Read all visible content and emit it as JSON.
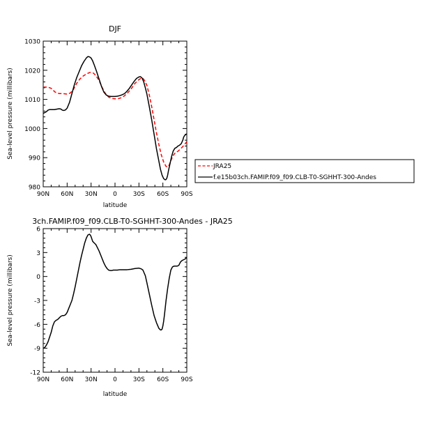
{
  "chart_data": [
    {
      "type": "line",
      "title": "DJF",
      "xlabel": "latitude",
      "ylabel": "Sea-level pressure (millibars)",
      "xlim": [
        -90,
        90
      ],
      "ylim": [
        980,
        1030
      ],
      "xticks": [
        -90,
        -60,
        -30,
        0,
        30,
        60,
        90
      ],
      "xticklabels": [
        "90N",
        "60N",
        "30N",
        "0",
        "30S",
        "60S",
        "90S"
      ],
      "yticks": [
        980,
        990,
        1000,
        1010,
        1020,
        1030
      ],
      "yticklabels": [
        "980",
        "990",
        "1000",
        "1010",
        "1020",
        "1030"
      ],
      "legend_position": "right",
      "series": [
        {
          "name": "JRA25",
          "color": "#ff0000",
          "style": "dashed",
          "x": [
            -90,
            -84,
            -80,
            -75,
            -70,
            -65,
            -60,
            -56,
            -52,
            -48,
            -44,
            -40,
            -36,
            -32,
            -30,
            -27,
            -24,
            -20,
            -16,
            -12,
            -8,
            -4,
            0,
            5,
            10,
            15,
            20,
            25,
            30,
            33,
            35,
            37,
            40,
            43,
            46,
            49,
            52,
            55,
            58,
            61,
            64,
            66,
            68,
            70,
            73,
            76,
            79,
            82,
            85,
            88,
            90
          ],
          "y": [
            1014.2,
            1014.2,
            1013.8,
            1012.5,
            1012,
            1012,
            1011.8,
            1012.2,
            1013.5,
            1015.5,
            1017,
            1018,
            1018.7,
            1019.2,
            1019.3,
            1019,
            1018.2,
            1016.5,
            1014,
            1012,
            1010.8,
            1010.3,
            1010.2,
            1010.3,
            1010.8,
            1012,
            1013.5,
            1015.5,
            1016.8,
            1017.3,
            1017.2,
            1016.5,
            1014.8,
            1011.5,
            1007.5,
            1003,
            998.5,
            994.5,
            991,
            988.5,
            987,
            986.8,
            987.5,
            989,
            990.8,
            991.8,
            992.2,
            993,
            993.8,
            994.8,
            995.5
          ]
        },
        {
          "name": "f.e15b03ch.FAMIP.f09_f09.CLB-T0-SGHHT-300-Andes",
          "color": "#000000",
          "style": "solid",
          "x": [
            -90,
            -88,
            -86,
            -84,
            -82,
            -80,
            -76,
            -72,
            -70,
            -68,
            -66,
            -64,
            -62,
            -60,
            -57,
            -54,
            -51,
            -48,
            -45,
            -42,
            -39,
            -36,
            -34,
            -32,
            -30,
            -28,
            -26,
            -23,
            -20,
            -17,
            -14,
            -11,
            -8,
            -5,
            -2,
            0,
            3,
            6,
            9,
            12,
            15,
            18,
            21,
            24,
            27,
            30,
            32,
            34,
            36,
            38,
            40,
            43,
            46,
            49,
            52,
            55,
            57,
            59,
            61,
            63,
            64,
            65,
            66,
            67,
            69,
            71,
            73,
            75,
            77,
            79,
            81,
            83,
            85,
            86,
            87,
            88,
            89,
            90
          ],
          "y": [
            1005.2,
            1005.5,
            1005.8,
            1006.3,
            1006.5,
            1006.5,
            1006.5,
            1006.7,
            1006.8,
            1006.7,
            1006.3,
            1006.2,
            1006.4,
            1007,
            1009,
            1012,
            1015,
            1017.5,
            1019.5,
            1021.5,
            1023,
            1024.2,
            1024.7,
            1024.6,
            1024.2,
            1023.2,
            1021.8,
            1019.5,
            1017,
            1014.5,
            1012.5,
            1011.5,
            1011.1,
            1011,
            1011,
            1011,
            1011.1,
            1011.3,
            1011.6,
            1012,
            1012.8,
            1013.8,
            1015,
            1016.2,
            1017.2,
            1017.7,
            1017.8,
            1017.3,
            1016,
            1014,
            1011.8,
            1007.5,
            1003,
            998,
            993,
            988.8,
            986,
            984,
            982.8,
            982.4,
            982.5,
            983,
            984,
            985.5,
            988,
            990.5,
            992.3,
            993.2,
            993.5,
            994,
            994.3,
            994.8,
            996,
            997,
            997.5,
            997.8,
            998,
            998.2
          ]
        }
      ]
    },
    {
      "type": "line",
      "title": "3ch.FAMIP.f09_f09.CLB-T0-SGHHT-300-Andes - JRA25",
      "xlabel": "latitude",
      "ylabel": "Sea-level pressure (millibars)",
      "xlim": [
        -90,
        90
      ],
      "ylim": [
        -12,
        6
      ],
      "xticks": [
        -90,
        -60,
        -30,
        0,
        30,
        60,
        90
      ],
      "xticklabels": [
        "90N",
        "60N",
        "30N",
        "0",
        "30S",
        "60S",
        "90S"
      ],
      "yticks": [
        -12,
        -9,
        -6,
        -3,
        0,
        3,
        6
      ],
      "yticklabels": [
        "-12",
        "-9",
        "-6",
        "-3",
        "0",
        "3",
        "6"
      ],
      "series": [
        {
          "name": "",
          "color": "#000000",
          "style": "solid",
          "x": [
            -90,
            -88,
            -86,
            -84,
            -82,
            -80,
            -78,
            -76,
            -74,
            -72,
            -70,
            -68,
            -66,
            -64,
            -62,
            -60,
            -58,
            -56,
            -54,
            -52,
            -50,
            -48,
            -46,
            -44,
            -42,
            -40,
            -38,
            -36,
            -34,
            -32,
            -31,
            -30,
            -29,
            -28,
            -26,
            -24,
            -22,
            -20,
            -18,
            -16,
            -14,
            -12,
            -10,
            -8,
            -6,
            -4,
            -2,
            0,
            3,
            6,
            10,
            15,
            20,
            25,
            30,
            33,
            35,
            38,
            40,
            43,
            46,
            49,
            52,
            55,
            57,
            58,
            59,
            60,
            61,
            62,
            64,
            66,
            68,
            70,
            72,
            74,
            76,
            78,
            80,
            82,
            84,
            86,
            88,
            90
          ],
          "y": [
            -9,
            -8.9,
            -8.6,
            -8.2,
            -7.6,
            -7,
            -6.2,
            -5.7,
            -5.5,
            -5.4,
            -5.2,
            -5,
            -4.9,
            -4.9,
            -4.8,
            -4.5,
            -4,
            -3.5,
            -3,
            -2.2,
            -1.3,
            -0.3,
            0.7,
            1.7,
            2.6,
            3.4,
            4.2,
            4.8,
            5.2,
            5.3,
            5.2,
            5,
            4.7,
            4.4,
            4.2,
            4,
            3.6,
            3.2,
            2.7,
            2.2,
            1.7,
            1.3,
            1,
            0.8,
            0.75,
            0.75,
            0.8,
            0.8,
            0.8,
            0.85,
            0.85,
            0.85,
            0.9,
            1,
            1.05,
            0.95,
            0.8,
            0.1,
            -0.8,
            -2.2,
            -3.6,
            -4.9,
            -5.8,
            -6.5,
            -6.7,
            -6.7,
            -6.6,
            -6.2,
            -5.6,
            -4.8,
            -3,
            -1.5,
            -0.2,
            0.8,
            1.2,
            1.3,
            1.3,
            1.3,
            1.4,
            1.8,
            2,
            2.1,
            2.2,
            2.4
          ]
        }
      ]
    }
  ]
}
